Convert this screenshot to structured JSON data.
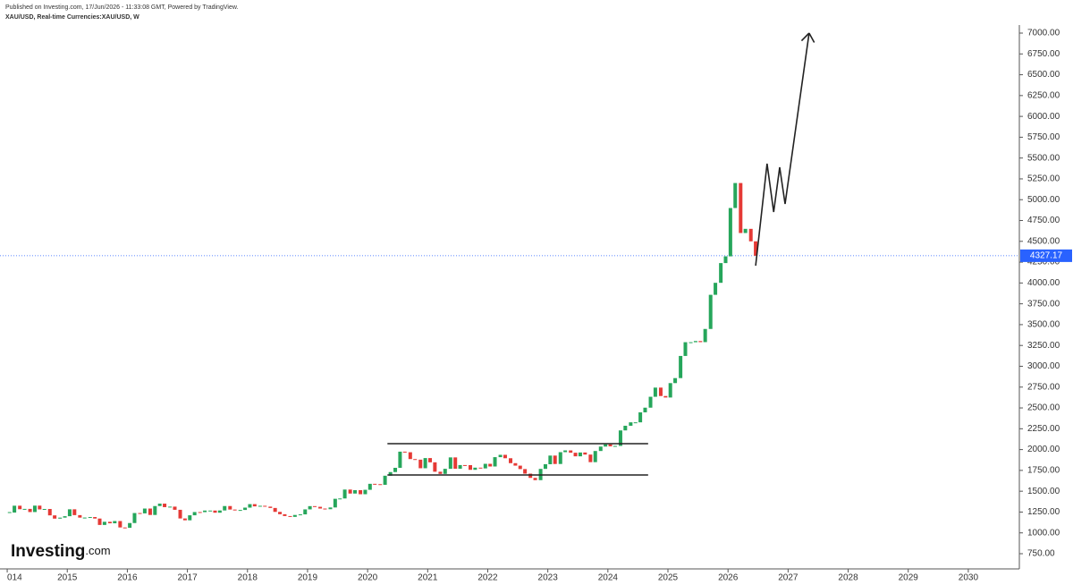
{
  "header": {
    "published": "Published on Investing.com, 17/Jun/2026 - 11:33:08 GMT, Powered by TradingView.",
    "symbol": "XAU/USD, Real-time Currencies:XAU/USD, W",
    "logo": "Investing",
    "logo_suffix": ".com"
  },
  "chart_data": {
    "type": "candlestick",
    "x": [
      2014.04,
      2014.12,
      2014.21,
      2014.29,
      2014.38,
      2014.46,
      2014.54,
      2014.62,
      2014.71,
      2014.79,
      2014.88,
      2014.96,
      2015.04,
      2015.12,
      2015.21,
      2015.29,
      2015.38,
      2015.46,
      2015.54,
      2015.62,
      2015.71,
      2015.79,
      2015.88,
      2015.96,
      2016.04,
      2016.12,
      2016.21,
      2016.29,
      2016.38,
      2016.46,
      2016.54,
      2016.62,
      2016.71,
      2016.79,
      2016.88,
      2016.96,
      2017.04,
      2017.12,
      2017.21,
      2017.29,
      2017.38,
      2017.46,
      2017.54,
      2017.62,
      2017.71,
      2017.79,
      2017.88,
      2017.96,
      2018.04,
      2018.12,
      2018.21,
      2018.29,
      2018.38,
      2018.46,
      2018.54,
      2018.62,
      2018.71,
      2018.79,
      2018.88,
      2018.96,
      2019.04,
      2019.12,
      2019.21,
      2019.29,
      2019.38,
      2019.46,
      2019.54,
      2019.62,
      2019.71,
      2019.79,
      2019.88,
      2019.96,
      2020.04,
      2020.12,
      2020.21,
      2020.29,
      2020.38,
      2020.46,
      2020.54,
      2020.62,
      2020.71,
      2020.79,
      2020.88,
      2020.96,
      2021.04,
      2021.12,
      2021.21,
      2021.29,
      2021.38,
      2021.46,
      2021.54,
      2021.62,
      2021.71,
      2021.79,
      2021.88,
      2021.96,
      2022.04,
      2022.12,
      2022.21,
      2022.29,
      2022.38,
      2022.46,
      2022.54,
      2022.62,
      2022.71,
      2022.79,
      2022.88,
      2022.96,
      2023.04,
      2023.12,
      2023.21,
      2023.29,
      2023.38,
      2023.46,
      2023.54,
      2023.62,
      2023.71,
      2023.79,
      2023.88,
      2023.96,
      2024.04,
      2024.12,
      2024.21,
      2024.29,
      2024.38,
      2024.46,
      2024.54,
      2024.62,
      2024.71,
      2024.79,
      2024.88,
      2024.96,
      2025.04,
      2025.12,
      2025.21,
      2025.29,
      2025.38,
      2025.46,
      2025.54,
      2025.62,
      2025.71,
      2025.79,
      2025.88,
      2025.96,
      2026.04,
      2026.12,
      2026.21,
      2026.29,
      2026.38,
      2026.46
    ],
    "series": [
      {
        "name": "XAU/USD",
        "up_color": "#26a65b",
        "down_color": "#e53935",
        "values": [
          1244,
          1326,
          1284,
          1288,
          1250,
          1327,
          1282,
          1287,
          1210,
          1171,
          1183,
          1200,
          1283,
          1213,
          1183,
          1184,
          1190,
          1172,
          1095,
          1133,
          1115,
          1142,
          1065,
          1061,
          1118,
          1238,
          1234,
          1292,
          1215,
          1322,
          1351,
          1309,
          1315,
          1277,
          1173,
          1151,
          1211,
          1250,
          1249,
          1268,
          1268,
          1242,
          1269,
          1322,
          1280,
          1271,
          1275,
          1303,
          1345,
          1318,
          1325,
          1315,
          1299,
          1252,
          1224,
          1202,
          1192,
          1215,
          1222,
          1282,
          1321,
          1313,
          1292,
          1284,
          1305,
          1409,
          1413,
          1520,
          1472,
          1513,
          1464,
          1517,
          1589,
          1585,
          1577,
          1686,
          1730,
          1781,
          1975,
          1968,
          1886,
          1879,
          1776,
          1898,
          1847,
          1734,
          1708,
          1769,
          1906,
          1770,
          1814,
          1813,
          1757,
          1783,
          1774,
          1829,
          1797,
          1909,
          1937,
          1896,
          1837,
          1807,
          1766,
          1711,
          1660,
          1633,
          1768,
          1824,
          1928,
          1827,
          1969,
          1990,
          1962,
          1919,
          1965,
          1940,
          1849,
          1983,
          2036,
          2063,
          2039,
          2044,
          2230,
          2286,
          2327,
          2327,
          2447,
          2503,
          2634,
          2744,
          2643,
          2625,
          2798,
          2858,
          3124,
          3289,
          3289,
          3303,
          3290,
          3448,
          3858,
          4002,
          4239,
          4320,
          4900,
          5200,
          4600,
          4650,
          4500,
          4327
        ]
      }
    ],
    "last_price": 4327.17,
    "last_price_color": "#2962ff",
    "range_lines": [
      {
        "x": [
          2020.33,
          2024.67
        ],
        "y": 2071
      },
      {
        "x": [
          2020.33,
          2024.67
        ],
        "y": 1695
      }
    ],
    "projection": {
      "x": [
        2026.46,
        2026.65,
        2026.76,
        2026.86,
        2026.95,
        2027.35
      ],
      "y": [
        4208,
        5432,
        4852,
        5389,
        4949,
        7000
      ]
    },
    "xlim": [
      2013.88,
      2030.85
    ],
    "ylim": [
      550,
      7150
    ],
    "xticks": [
      {
        "value": 2014,
        "label": "014"
      },
      2015,
      2016,
      2017,
      2018,
      2019,
      2020,
      2021,
      2022,
      2023,
      2024,
      2025,
      2026,
      2027,
      2028,
      2029,
      2030
    ],
    "yticks": [
      {
        "value": 750,
        "label": "750.00"
      },
      {
        "value": 1000,
        "label": "1000.00"
      },
      {
        "value": 1250,
        "label": "1250.00"
      },
      {
        "value": 1500,
        "label": "1500.00"
      },
      {
        "value": 1750,
        "label": "1750.00"
      },
      {
        "value": 2000,
        "label": "2000.00"
      },
      {
        "value": 2250,
        "label": "2250.00"
      },
      {
        "value": 2500,
        "label": "2500.00"
      },
      {
        "value": 2750,
        "label": "2750.00"
      },
      {
        "value": 3000,
        "label": "3000.00"
      },
      {
        "value": 3250,
        "label": "3250.00"
      },
      {
        "value": 3500,
        "label": "3500.00"
      },
      {
        "value": 3750,
        "label": "3750.00"
      },
      {
        "value": 4000,
        "label": "4000.00"
      },
      {
        "value": 4250,
        "label": "4250.00"
      },
      {
        "value": 4500,
        "label": "4500.00"
      },
      {
        "value": 4750,
        "label": "4750.00"
      },
      {
        "value": 5000,
        "label": "5000.00"
      },
      {
        "value": 5250,
        "label": "5250.00"
      },
      {
        "value": 5500,
        "label": "5500.00"
      },
      {
        "value": 5750,
        "label": "5750.00"
      },
      {
        "value": 6000,
        "label": "6000.00"
      },
      {
        "value": 6250,
        "label": "6250.00"
      },
      {
        "value": 6500,
        "label": "6500.00"
      },
      {
        "value": 6750,
        "label": "6750.00"
      },
      {
        "value": 7000,
        "label": "7000.00"
      }
    ]
  }
}
